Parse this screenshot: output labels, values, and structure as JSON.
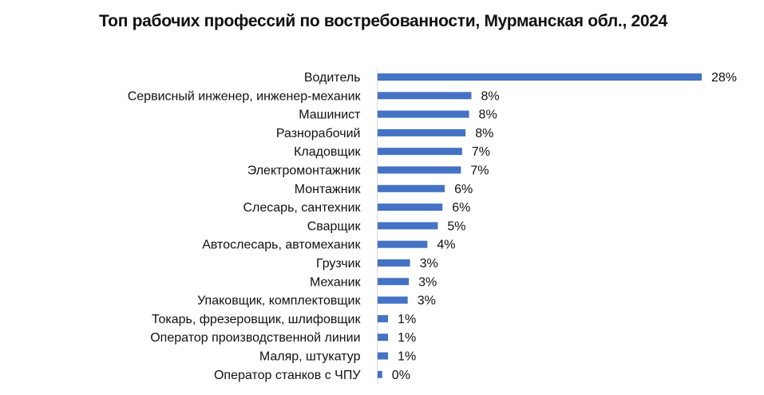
{
  "chart_data": {
    "type": "bar",
    "orientation": "horizontal",
    "title": "Топ рабочих профессий по востребованности, Мурманская обл., 2024",
    "categories": [
      "Водитель",
      "Сервисный инженер, инженер-механик",
      "Машинист",
      "Разнорабочий",
      "Кладовщик",
      "Электромонтажник",
      "Монтажник",
      "Слесарь, сантехник",
      "Сварщик",
      "Автослесарь, автомеханик",
      "Грузчик",
      "Механик",
      "Упаковщик, комплектовщик",
      "Токарь, фрезеровщик, шлифовщик",
      "Оператор производственной линии",
      "Маляр, штукатур",
      "Оператор станков с ЧПУ"
    ],
    "values": [
      28,
      8.1,
      7.9,
      7.6,
      7.3,
      7.2,
      5.8,
      5.6,
      5.2,
      4.3,
      2.8,
      2.7,
      2.6,
      0.9,
      0.9,
      0.9,
      0.4
    ],
    "value_labels": [
      "28%",
      "8%",
      "8%",
      "8%",
      "7%",
      "7%",
      "6%",
      "6%",
      "5%",
      "4%",
      "3%",
      "3%",
      "3%",
      "1%",
      "1%",
      "1%",
      "0%"
    ],
    "xlim": [
      0,
      28
    ],
    "bar_color": "#4472c4",
    "grid": false,
    "legend": "none"
  }
}
